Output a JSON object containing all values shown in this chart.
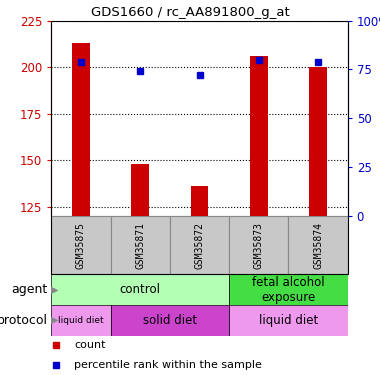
{
  "title": "GDS1660 / rc_AA891800_g_at",
  "samples": [
    "GSM35875",
    "GSM35871",
    "GSM35872",
    "GSM35873",
    "GSM35874"
  ],
  "bar_values": [
    213,
    148,
    136,
    206,
    200
  ],
  "bar_bottom": 120,
  "bar_color": "#cc0000",
  "bar_width": 0.3,
  "percentile_values": [
    79,
    74,
    72,
    80,
    79
  ],
  "percentile_color": "#0000cc",
  "ylim_left": [
    120,
    225
  ],
  "ylim_right": [
    0,
    100
  ],
  "yticks_left": [
    125,
    150,
    175,
    200,
    225
  ],
  "yticks_right": [
    0,
    25,
    50,
    75,
    100
  ],
  "agent_groups": [
    {
      "label": "control",
      "span": [
        0,
        3
      ],
      "color": "#b3ffb3"
    },
    {
      "label": "fetal alcohol\nexposure",
      "span": [
        3,
        5
      ],
      "color": "#44dd44"
    }
  ],
  "protocol_groups": [
    {
      "label": "liquid diet",
      "span": [
        0,
        1
      ],
      "color": "#ee99ee"
    },
    {
      "label": "solid diet",
      "span": [
        1,
        3
      ],
      "color": "#cc44cc"
    },
    {
      "label": "liquid diet",
      "span": [
        3,
        5
      ],
      "color": "#ee99ee"
    }
  ],
  "legend_items": [
    {
      "label": "count",
      "color": "#cc0000"
    },
    {
      "label": "percentile rank within the sample",
      "color": "#0000cc"
    }
  ],
  "sample_bg_color": "#c8c8c8",
  "sample_border_color": "#888888",
  "left_axis_color": "#cc0000",
  "right_axis_color": "#0000cc",
  "grid_color": "black",
  "n_samples": 5
}
